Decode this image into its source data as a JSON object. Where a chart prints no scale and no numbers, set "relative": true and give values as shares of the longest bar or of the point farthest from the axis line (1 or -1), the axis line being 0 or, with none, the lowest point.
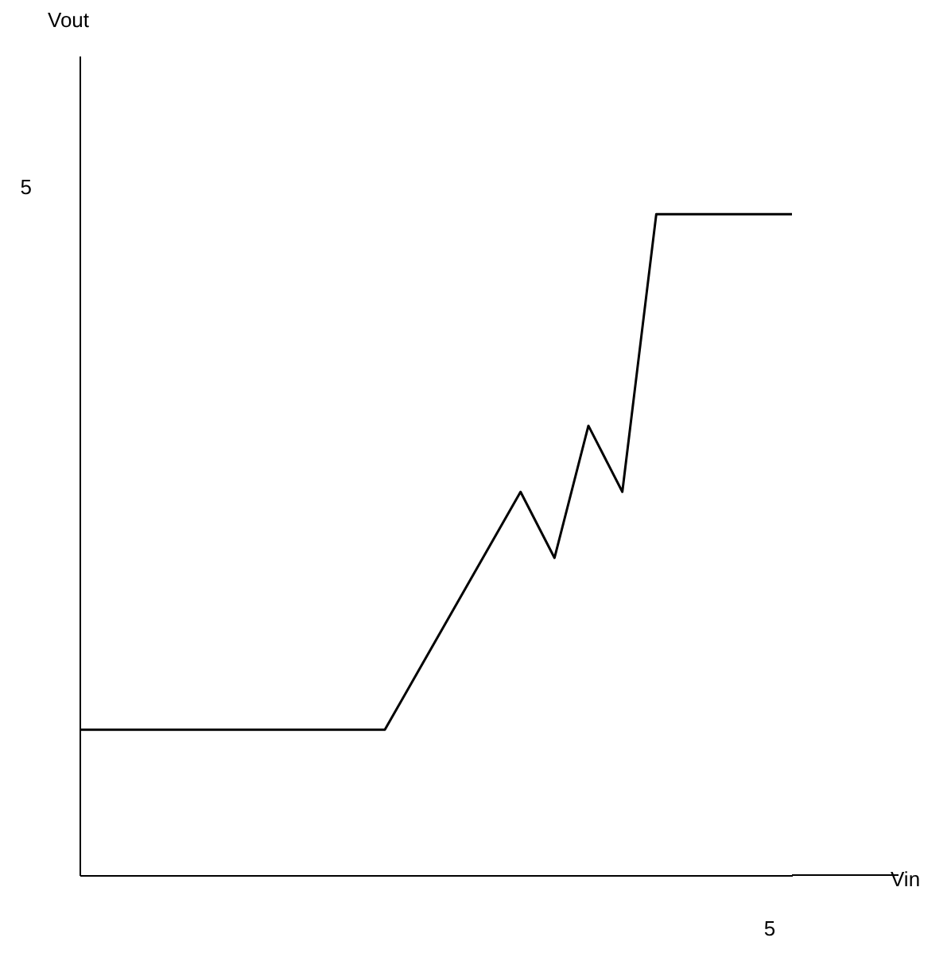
{
  "chart_data": {
    "type": "line",
    "relative": true,
    "categories": [
      null,
      null,
      null,
      null,
      null,
      null,
      null,
      null,
      null,
      null,
      null,
      null,
      null,
      null,
      null,
      null,
      null,
      null,
      null,
      null,
      null,
      null
    ],
    "annotations": [
      "5",
      "5",
      "Vout",
      "Vin"
    ],
    "grid": false,
    "marker": "none",
    "line_style": "solid",
    "series": [
      {
        "color": "#000000",
        "values": [
          0.22,
          0.22,
          0.22,
          0.22,
          0.22,
          0.22,
          0.22,
          0.22,
          0.22,
          0.22,
          0.31,
          0.4,
          0.49,
          0.58,
          0.48,
          0.68,
          0.58,
          1,
          1,
          1,
          1,
          1
        ]
      }
    ]
  }
}
